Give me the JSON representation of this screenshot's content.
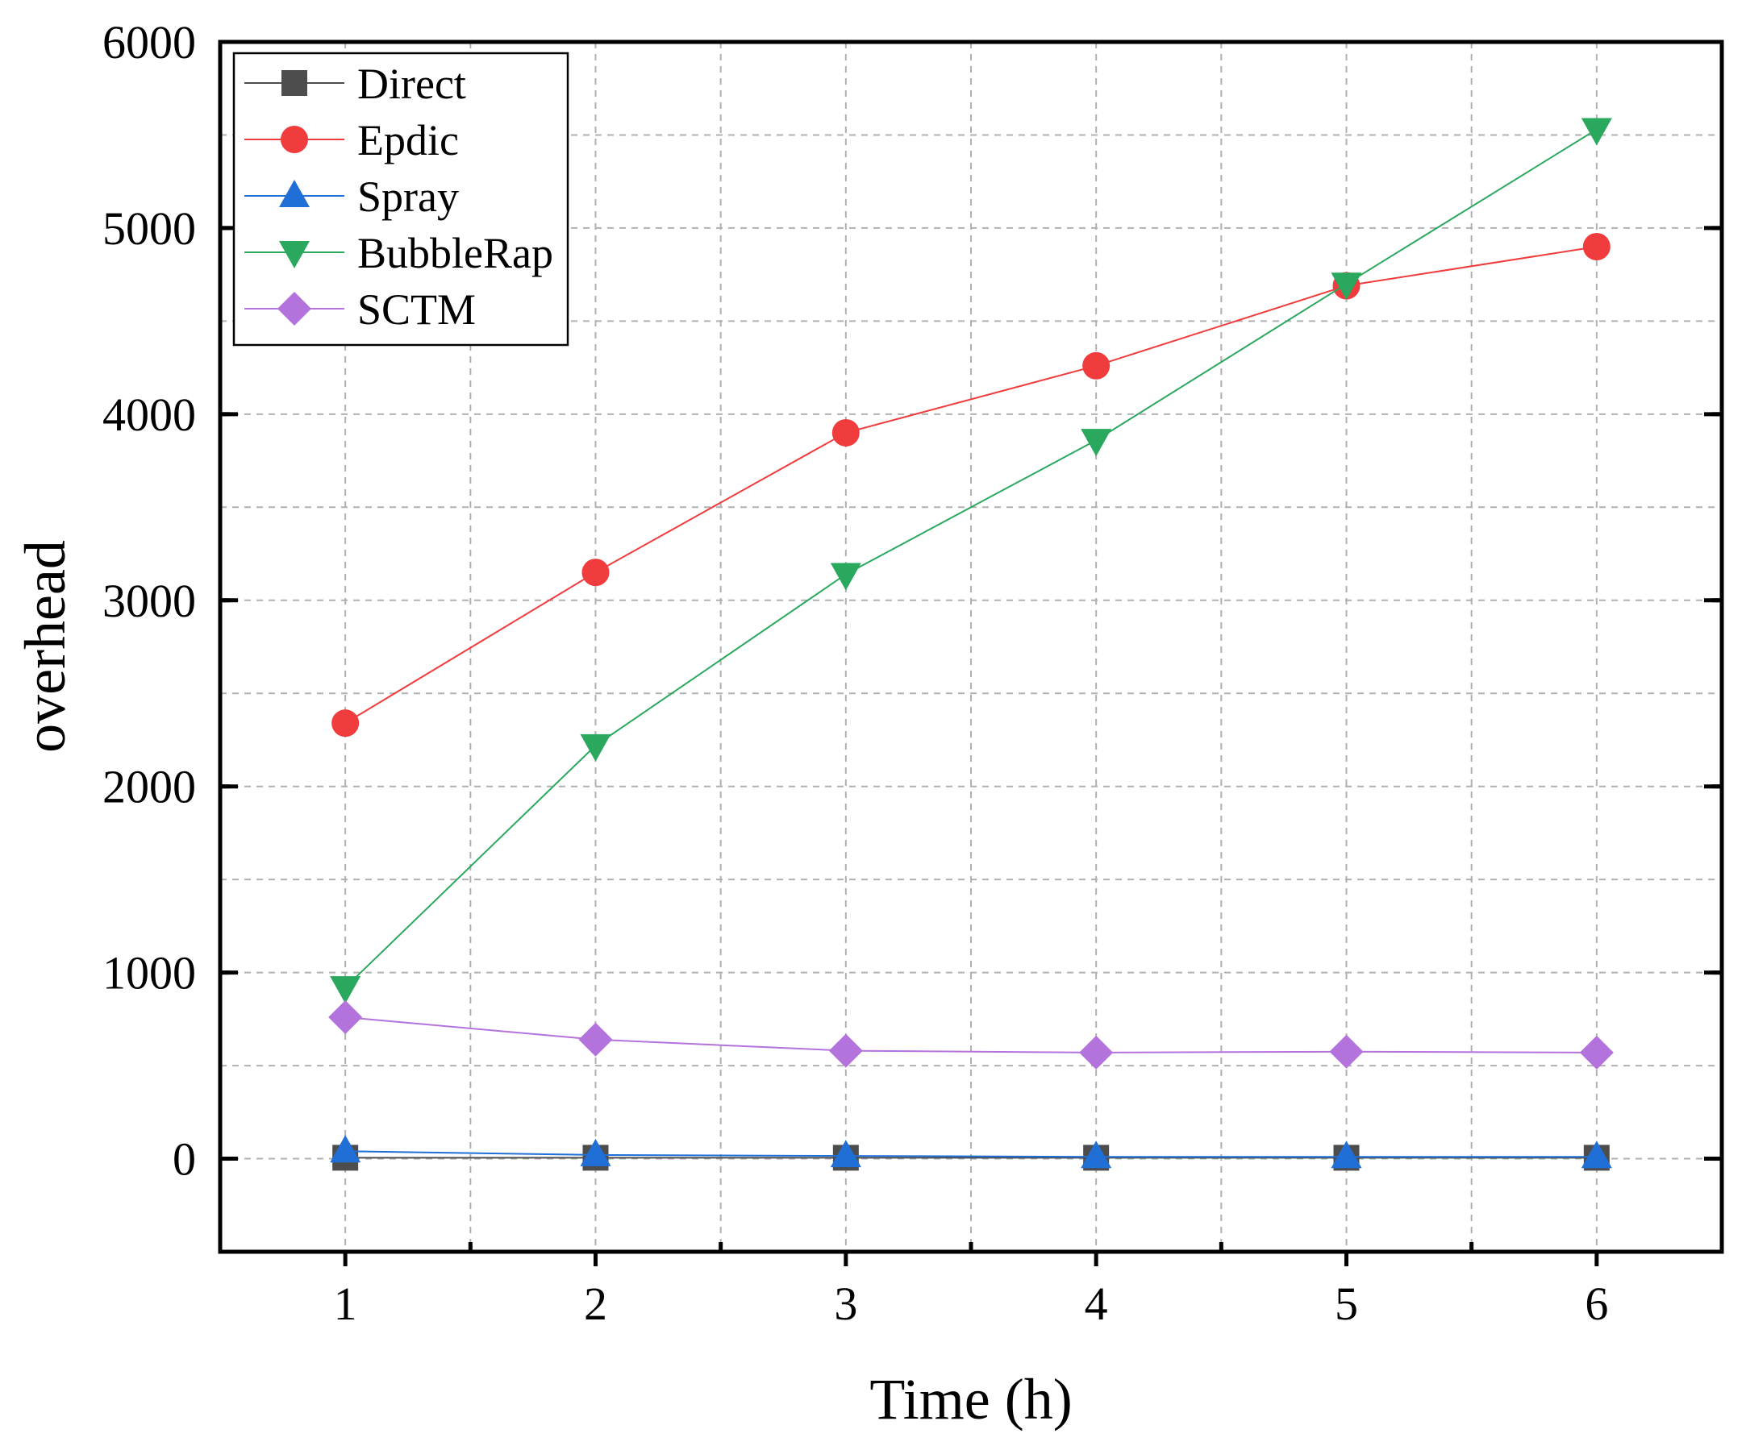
{
  "chart_data": {
    "type": "line",
    "title": "",
    "xlabel": "Time (h)",
    "ylabel": "overhead",
    "x": [
      1,
      2,
      3,
      4,
      5,
      6
    ],
    "xlim": [
      0.5,
      6.5
    ],
    "ylim": [
      -500,
      6000
    ],
    "xticks": [
      "1",
      "2",
      "3",
      "4",
      "5",
      "6"
    ],
    "yticks": [
      "0",
      "1000",
      "2000",
      "3000",
      "4000",
      "5000",
      "6000"
    ],
    "ytick_values": [
      0,
      1000,
      2000,
      3000,
      4000,
      5000,
      6000
    ],
    "grid": true,
    "legend_position": "top-left",
    "series": [
      {
        "name": "Direct",
        "color": "#4d4d4d",
        "marker": "square",
        "values": [
          5,
          5,
          5,
          5,
          5,
          5
        ]
      },
      {
        "name": "Epdic",
        "color": "#f03c3c",
        "marker": "circle",
        "values": [
          2340,
          3150,
          3900,
          4260,
          4690,
          4900
        ]
      },
      {
        "name": "Spray",
        "color": "#1f6fd6",
        "marker": "triangle-up",
        "values": [
          40,
          20,
          15,
          10,
          10,
          10
        ]
      },
      {
        "name": "BubbleRap",
        "color": "#2aa85e",
        "marker": "triangle-down",
        "values": [
          920,
          2220,
          3140,
          3860,
          4700,
          5530
        ]
      },
      {
        "name": "SCTM",
        "color": "#b472dd",
        "marker": "diamond",
        "values": [
          760,
          640,
          580,
          570,
          575,
          570
        ]
      }
    ]
  }
}
